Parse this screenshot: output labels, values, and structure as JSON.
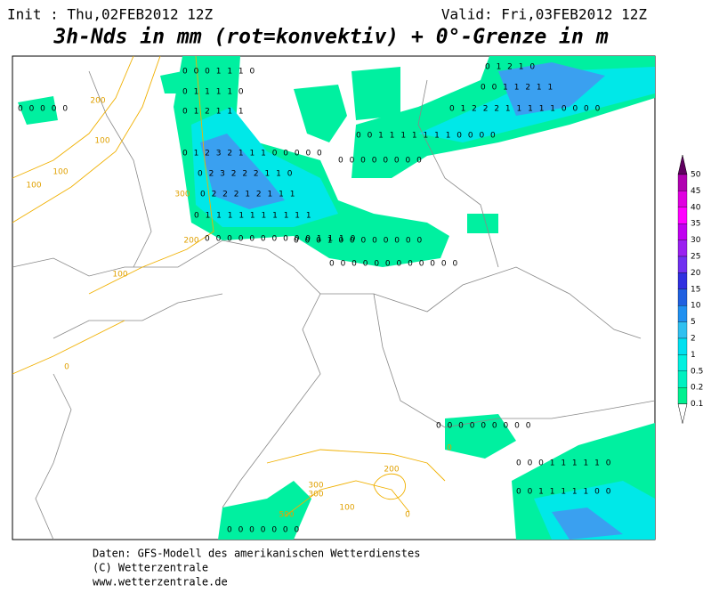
{
  "header": {
    "init": "Init : Thu,02FEB2012 12Z",
    "valid": "Valid: Fri,03FEB2012 12Z",
    "title": "3h-Nds in mm (rot=konvektiv) + 0°-Grenze in m"
  },
  "legend": {
    "labels": [
      "50",
      "45",
      "40",
      "35",
      "30",
      "25",
      "20",
      "15",
      "10",
      "5",
      "2",
      "1",
      "0.5",
      "0.2",
      "0.1"
    ]
  },
  "map": {
    "precip_rows": [
      "0 0 0 1 1 1 0",
      "0 1 1 1 1 0",
      "0 1 2 1 1 1",
      "0 1 2 3 2 1 1 1 0 0 0 0 0",
      "0 2 3 2 2 2 1 1 0",
      "0 2 2 2 1 2 1 1 1",
      "0 1 1 1 1 1 1 1 1 1 1",
      "0 0 0 0 0 0 0 0 0 0 1 1 1 0",
      "0 0 0 1 0 0 0 0 0 0 0 0",
      "0 0 0 0 0 0 0 0 0 0 0 0",
      "0 1 2 1 0",
      "0 0 1 1 2 1 1",
      "0 1 2 2 2 1 1 1 1 1 0 0 0 0",
      "0 0 1 1 1 1 1 1 1 0 0 0 0",
      "0 0 0 0 0 0 0 0",
      "0 0 0 0 0",
      "0 0 0 0 0 0 0 0 0",
      "0 0 0 1 1 1 1 1 0",
      "0 0 1 1 1 1 1 0 0",
      "0 0 0 0 0 0 0"
    ],
    "contour_labels": [
      "200",
      "100",
      "100",
      "100",
      "300",
      "200",
      "100",
      "0",
      "0",
      "200",
      "300",
      "300",
      "500",
      "100",
      "0"
    ]
  },
  "footer": {
    "source": "Daten: GFS-Modell des amerikanischen Wetterdienstes",
    "copyright": "(C) Wetterzentrale",
    "url": "www.wetterzentrale.de"
  }
}
